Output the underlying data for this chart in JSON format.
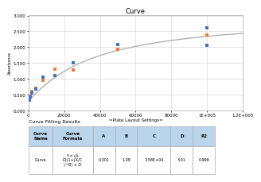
{
  "title": "Curve",
  "xlabel": "=Plate Layout Settings=",
  "ylabel": "Absorbance",
  "xlim": [
    0,
    120000
  ],
  "ylim": [
    0.0,
    3.0
  ],
  "xticks": [
    0,
    20000,
    40000,
    60000,
    80000,
    100000,
    120000
  ],
  "xtick_labels": [
    "0",
    "20000",
    "40000",
    "60000",
    "80000",
    "1E+005",
    "1.2E+005"
  ],
  "yticks": [
    0.0,
    0.5,
    1.0,
    1.5,
    2.0,
    2.5,
    3.0
  ],
  "ytick_labels": [
    "0.000",
    "0.500",
    "1.000",
    "1.500",
    "2.000",
    "2.500",
    "3.000"
  ],
  "scatter_blue_x": [
    500,
    1000,
    2000,
    4000,
    8000,
    15000,
    25000,
    50000,
    100000,
    100000
  ],
  "scatter_blue_y": [
    0.32,
    0.43,
    0.56,
    0.68,
    1.05,
    1.1,
    1.52,
    2.08,
    2.62,
    2.05
  ],
  "scatter_orange_x": [
    500,
    1000,
    2000,
    4000,
    8000,
    15000,
    25000,
    50000,
    100000
  ],
  "scatter_orange_y": [
    0.38,
    0.47,
    0.62,
    0.72,
    0.97,
    1.3,
    1.28,
    1.93,
    2.38
  ],
  "curve_color": "#b0b0b0",
  "blue_color": "#4472c4",
  "orange_color": "#ed7d31",
  "plot_bg": "#ffffff",
  "grid_color": "#d0d0d0",
  "A": 0.301,
  "B": 1.09,
  "C": 35800,
  "D": 3.01,
  "table_header_bg": "#bad4eb",
  "table_row_bg": "#ffffff",
  "table_header_text": "Curve Fitting Results",
  "col_headers": [
    "Curve\nName",
    "Curve\nFormula",
    "A",
    "B",
    "C",
    "D",
    "R2"
  ],
  "row_data": [
    "Curve",
    "Y = (A-\nD)(1+(X/C\n)^B) + D",
    "0.301",
    "1.09",
    "3.58E+04",
    "3.01",
    "0.999"
  ]
}
